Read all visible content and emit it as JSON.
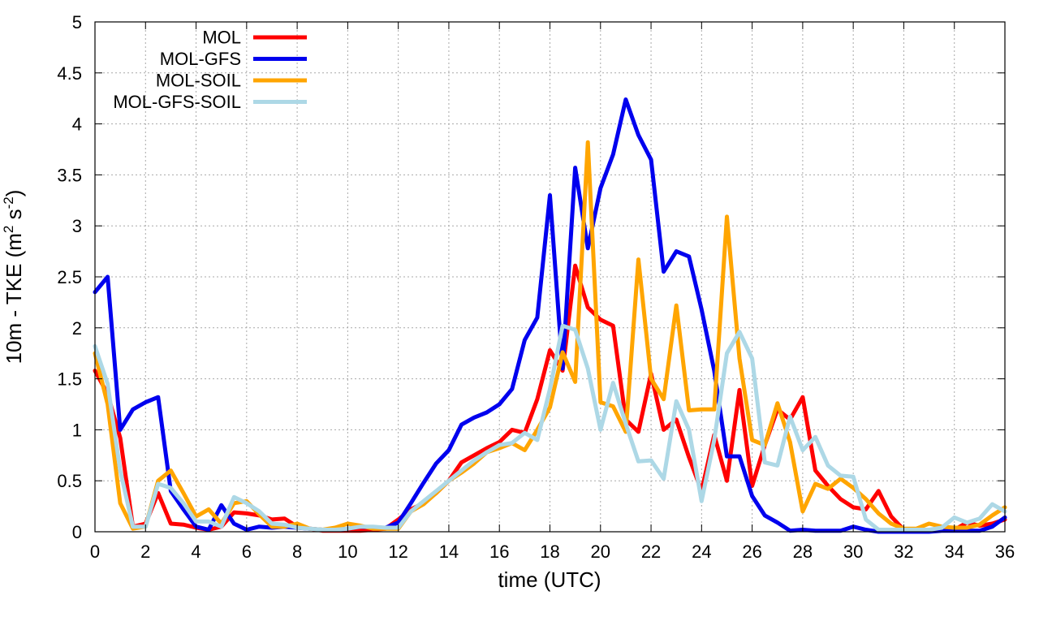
{
  "chart_data": {
    "type": "line",
    "xlabel": "time (UTC)",
    "ylabel": {
      "prefix": "10m - TKE (m",
      "sup1": "2",
      "mid": " s",
      "sup2": "-2",
      "suffix": ")"
    },
    "xlim": [
      0,
      36
    ],
    "ylim": [
      0,
      5
    ],
    "xticks": [
      0,
      2,
      4,
      6,
      8,
      10,
      12,
      14,
      16,
      18,
      20,
      22,
      24,
      26,
      28,
      30,
      32,
      34,
      36
    ],
    "yticks": [
      0,
      0.5,
      1,
      1.5,
      2,
      2.5,
      3,
      3.5,
      4,
      4.5,
      5
    ],
    "ytick_labels": [
      "0",
      "0.5",
      "1",
      "1.5",
      "2",
      "2.5",
      "3",
      "3.5",
      "4",
      "4.5",
      "5"
    ],
    "grid": true,
    "legend_position": "top-left",
    "x": [
      0,
      0.5,
      1,
      1.5,
      2,
      2.5,
      3,
      3.5,
      4,
      4.5,
      5,
      5.5,
      6,
      6.5,
      7,
      7.5,
      8,
      8.5,
      9,
      9.5,
      10,
      10.5,
      11,
      11.5,
      12,
      12.5,
      13,
      13.5,
      14,
      14.5,
      15,
      15.5,
      16,
      16.5,
      17,
      17.5,
      18,
      18.5,
      19,
      19.5,
      20,
      20.5,
      21,
      21.5,
      22,
      22.5,
      23,
      23.5,
      24,
      24.5,
      25,
      25.5,
      26,
      26.5,
      27,
      27.5,
      28,
      28.5,
      29,
      29.5,
      30,
      30.5,
      31,
      31.5,
      32,
      32.5,
      33,
      33.5,
      34,
      34.5,
      35,
      35.5,
      36
    ],
    "series": [
      {
        "name": "MOL",
        "color": "#ff0000",
        "values": [
          1.58,
          1.35,
          0.92,
          0.05,
          0.08,
          0.38,
          0.08,
          0.07,
          0.04,
          0.02,
          0.05,
          0.19,
          0.18,
          0.16,
          0.12,
          0.13,
          0.05,
          0.03,
          0.01,
          0.01,
          0.01,
          0.01,
          0.02,
          0.03,
          0.12,
          0.22,
          0.28,
          0.38,
          0.5,
          0.68,
          0.75,
          0.82,
          0.88,
          1.0,
          0.97,
          1.3,
          1.78,
          1.58,
          2.61,
          2.2,
          2.08,
          2.02,
          1.1,
          0.98,
          1.55,
          1.0,
          1.1,
          0.73,
          0.4,
          0.95,
          0.5,
          1.39,
          0.45,
          0.85,
          1.2,
          1.1,
          1.32,
          0.6,
          0.45,
          0.32,
          0.24,
          0.22,
          0.4,
          0.15,
          0.02,
          0.02,
          0.02,
          0.02,
          0.02,
          0.09,
          0.06,
          0.08,
          0.12
        ]
      },
      {
        "name": "MOL-GFS",
        "color": "#0000ee",
        "values": [
          2.35,
          2.5,
          1.0,
          1.2,
          1.27,
          1.32,
          0.4,
          0.22,
          0.05,
          0.02,
          0.26,
          0.08,
          0.02,
          0.05,
          0.04,
          0.05,
          0.04,
          0.03,
          0.02,
          0.02,
          0.03,
          0.05,
          0.04,
          0.04,
          0.09,
          0.28,
          0.48,
          0.67,
          0.8,
          1.05,
          1.12,
          1.17,
          1.25,
          1.4,
          1.88,
          2.1,
          3.3,
          1.6,
          3.57,
          2.78,
          3.37,
          3.7,
          4.24,
          3.89,
          3.65,
          2.55,
          2.75,
          2.7,
          2.18,
          1.58,
          0.74,
          0.74,
          0.35,
          0.16,
          0.09,
          0.01,
          0.02,
          0.01,
          0.01,
          0.01,
          0.05,
          0.02,
          0.0,
          0.0,
          0.0,
          0.0,
          0.0,
          0.01,
          0.01,
          0.01,
          0.01,
          0.05,
          0.14
        ]
      },
      {
        "name": "MOL-SOIL",
        "color": "#ffa500",
        "values": [
          1.75,
          1.25,
          0.28,
          0.03,
          0.05,
          0.5,
          0.6,
          0.38,
          0.15,
          0.22,
          0.08,
          0.28,
          0.3,
          0.17,
          0.05,
          0.05,
          0.08,
          0.03,
          0.02,
          0.04,
          0.08,
          0.06,
          0.03,
          0.03,
          0.03,
          0.2,
          0.27,
          0.38,
          0.5,
          0.58,
          0.67,
          0.78,
          0.82,
          0.87,
          0.8,
          1.0,
          1.22,
          1.76,
          1.47,
          3.82,
          1.27,
          1.23,
          0.98,
          2.67,
          1.5,
          1.3,
          2.22,
          1.19,
          1.2,
          1.2,
          3.09,
          1.7,
          0.9,
          0.85,
          1.26,
          0.88,
          0.2,
          0.47,
          0.42,
          0.52,
          0.43,
          0.32,
          0.18,
          0.08,
          0.03,
          0.03,
          0.08,
          0.05,
          0.04,
          0.04,
          0.07,
          0.16,
          0.24
        ]
      },
      {
        "name": "MOL-GFS-SOIL",
        "color": "#add8e6",
        "values": [
          1.82,
          1.45,
          0.6,
          0.05,
          0.05,
          0.47,
          0.43,
          0.28,
          0.1,
          0.1,
          0.05,
          0.34,
          0.28,
          0.2,
          0.08,
          0.07,
          0.04,
          0.03,
          0.02,
          0.02,
          0.03,
          0.05,
          0.05,
          0.04,
          0.04,
          0.2,
          0.3,
          0.4,
          0.5,
          0.6,
          0.7,
          0.78,
          0.85,
          0.87,
          0.97,
          0.9,
          1.4,
          2.02,
          1.98,
          1.6,
          1.0,
          1.46,
          1.06,
          0.69,
          0.7,
          0.52,
          1.28,
          1.0,
          0.3,
          0.9,
          1.75,
          1.96,
          1.7,
          0.68,
          0.65,
          1.13,
          0.8,
          0.93,
          0.65,
          0.55,
          0.54,
          0.12,
          0.02,
          0.02,
          0.02,
          0.02,
          0.02,
          0.04,
          0.14,
          0.09,
          0.13,
          0.27,
          0.2
        ]
      }
    ]
  }
}
